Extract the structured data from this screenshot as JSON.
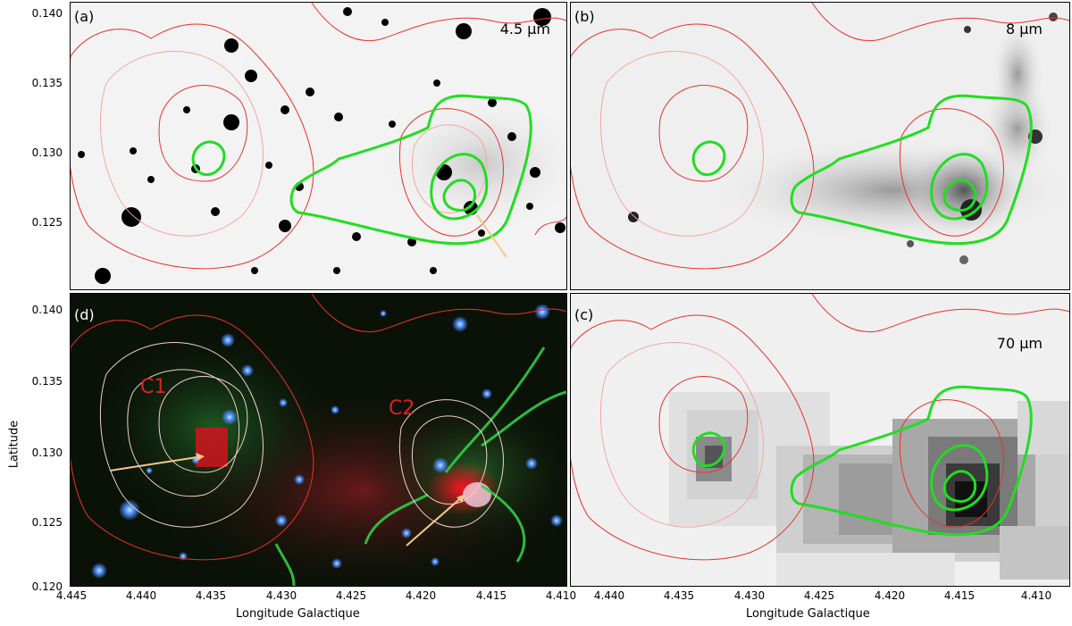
{
  "panels": {
    "a": {
      "label": "(a)",
      "wavelength": "4.5 μm"
    },
    "b": {
      "label": "(b)",
      "wavelength": "8 μm"
    },
    "c": {
      "label": "(c)",
      "wavelength": "70 μm"
    },
    "d": {
      "label": "(d)",
      "c1_label": "C1",
      "c2_label": "C2"
    }
  },
  "axes": {
    "ylabel": "Latitude",
    "xlabel": "Longitude Galactique",
    "yticks_top": [
      "0.140",
      "0.135",
      "0.130",
      "0.125"
    ],
    "yticks_bottom": [
      "0.140",
      "0.135",
      "0.130",
      "0.125",
      "0.120"
    ],
    "xticks_left": [
      "4.445",
      "4.440",
      "4.435",
      "4.430",
      "4.425",
      "4.420",
      "4.415",
      "4.410"
    ],
    "xticks_right": [
      "4.440",
      "4.435",
      "4.430",
      "4.425",
      "4.420",
      "4.415",
      "4.410"
    ]
  },
  "colors": {
    "contour_red": "#e8322a",
    "contour_pink": "#f2a8a0",
    "contour_green": "#22dd22",
    "arrow": "#f5c98a",
    "star_blue": "#4a8cff"
  }
}
